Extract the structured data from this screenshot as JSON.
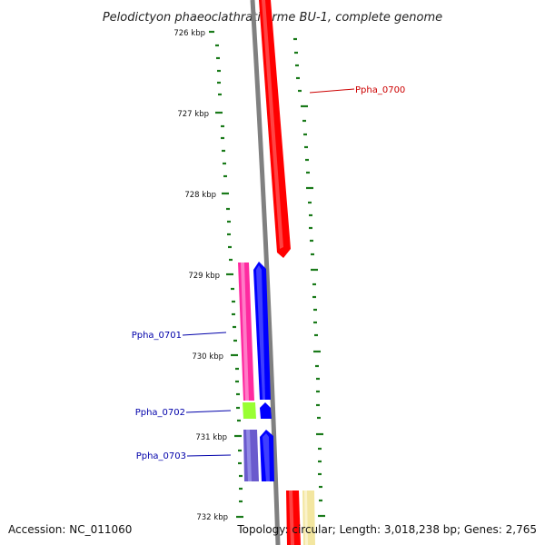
{
  "header": {
    "title": "Pelodictyon phaeoclathratiforme BU-1, complete genome"
  },
  "footer": {
    "accession": "Accession: NC_011060",
    "summary": "Topology: circular; Length: 3,018,238 bp; Genes: 2,765"
  },
  "scale": {
    "ticks": [
      "726 kbp",
      "727 kbp",
      "728 kbp",
      "729 kbp",
      "730 kbp",
      "731 kbp",
      "732 kbp"
    ],
    "tick_color": "#1a7a1a"
  },
  "genes": [
    {
      "label": "Ppha_0700",
      "color": "#cc0000"
    },
    {
      "label": "Ppha_0701",
      "color": "#0000aa"
    },
    {
      "label": "Ppha_0702",
      "color": "#0000aa"
    },
    {
      "label": "Ppha_0703",
      "color": "#0000aa"
    }
  ],
  "colors": {
    "backbone": "#808080",
    "red_gene": "#ff0000",
    "magenta_gene": "#ff2aa0",
    "blue_gene": "#0000ff",
    "lime_gene": "#99ff33",
    "slate_gene": "#6a5acd",
    "pale_yellow_gene": "#f3e6a0"
  }
}
